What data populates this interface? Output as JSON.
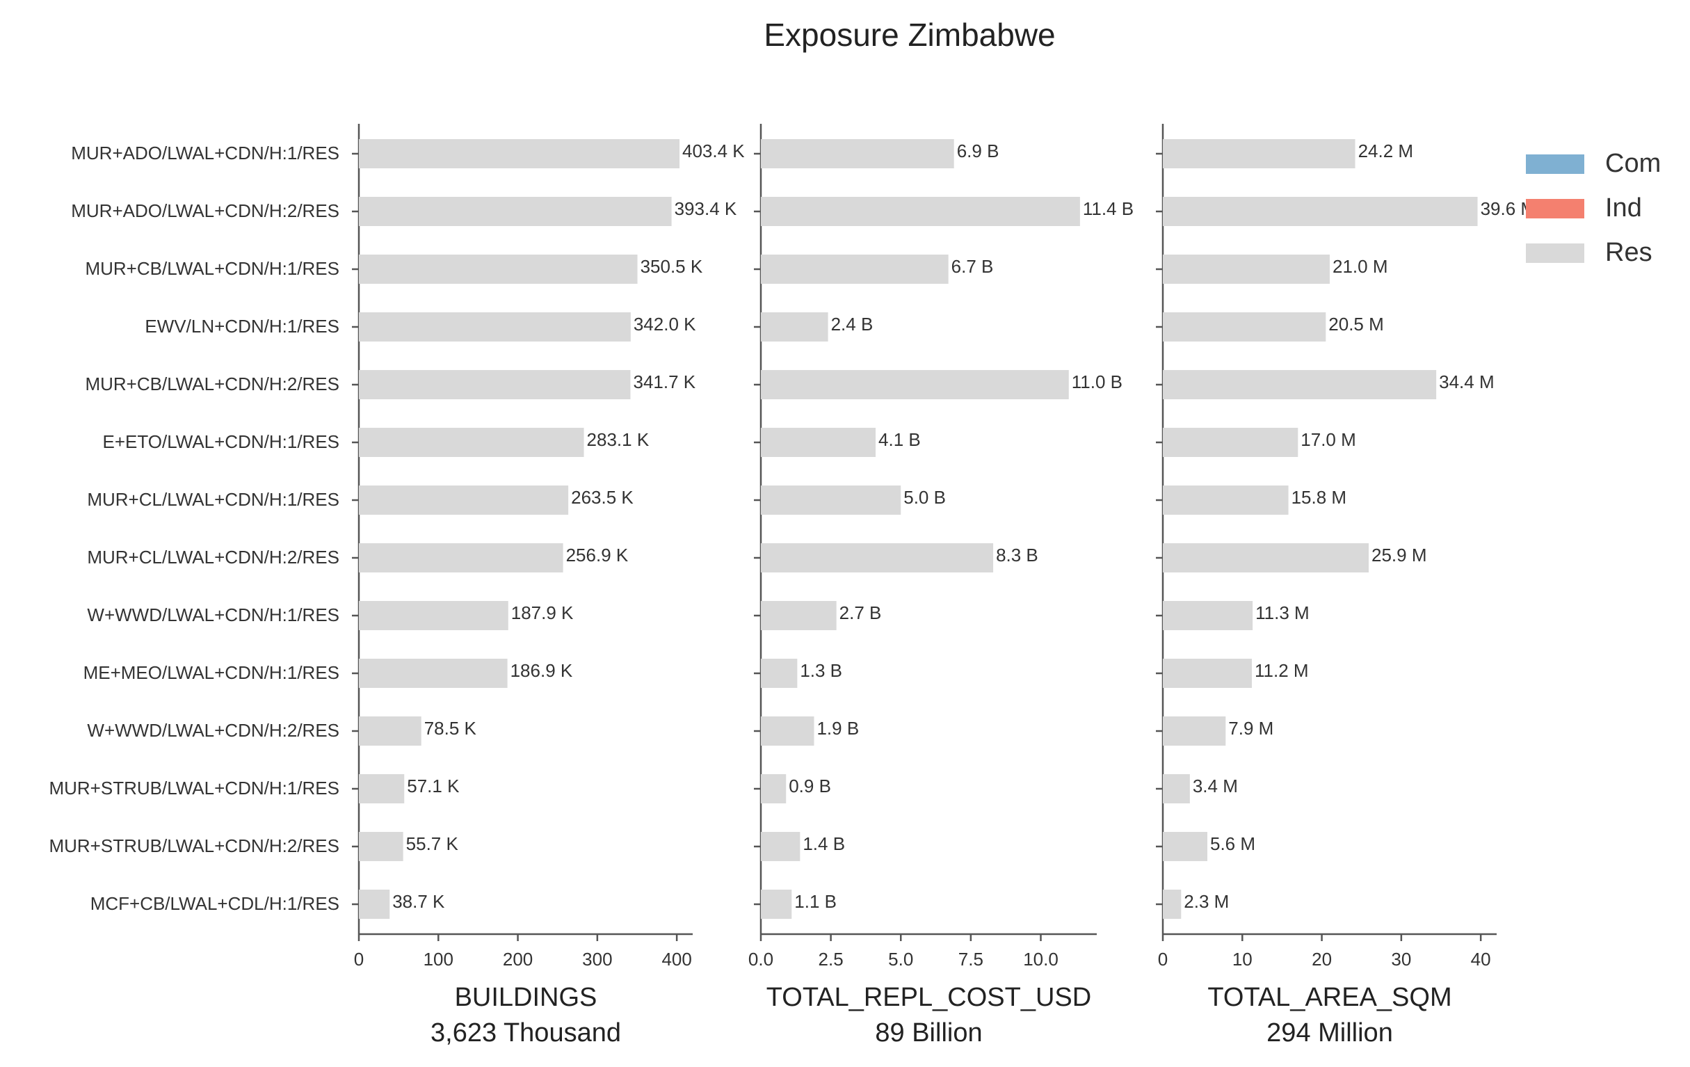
{
  "chart_data": {
    "type": "bar",
    "orientation": "horizontal",
    "stacked": true,
    "title": "Exposure Zimbabwe",
    "categories": [
      "MUR+ADO/LWAL+CDN/H:1/RES",
      "MUR+ADO/LWAL+CDN/H:2/RES",
      "MUR+CB/LWAL+CDN/H:1/RES",
      "EWV/LN+CDN/H:1/RES",
      "MUR+CB/LWAL+CDN/H:2/RES",
      "E+ETO/LWAL+CDN/H:1/RES",
      "MUR+CL/LWAL+CDN/H:1/RES",
      "MUR+CL/LWAL+CDN/H:2/RES",
      "W+WWD/LWAL+CDN/H:1/RES",
      "ME+MEO/LWAL+CDN/H:1/RES",
      "W+WWD/LWAL+CDN/H:2/RES",
      "MUR+STRUB/LWAL+CDN/H:1/RES",
      "MUR+STRUB/LWAL+CDN/H:2/RES",
      "MCF+CB/LWAL+CDL/H:1/RES"
    ],
    "legend": {
      "position": "top-right",
      "entries": [
        {
          "name": "Com",
          "color": "#7fb0d2"
        },
        {
          "name": "Ind",
          "color": "#f4806f"
        },
        {
          "name": "Res",
          "color": "#d9d9d9"
        }
      ]
    },
    "grid": false,
    "panels": [
      {
        "xlabel": "BUILDINGS",
        "subtitle": "3,623 Thousand",
        "xlim": [
          0,
          420
        ],
        "xticks": [
          0,
          100,
          200,
          300,
          400
        ],
        "xtick_labels": [
          "0",
          "100",
          "200",
          "300",
          "400"
        ],
        "series": [
          {
            "name": "Res",
            "values": [
              403.4,
              393.4,
              350.5,
              342.0,
              341.7,
              283.1,
              263.5,
              256.9,
              187.9,
              186.9,
              78.5,
              57.1,
              55.7,
              38.7
            ]
          }
        ],
        "data_labels": [
          "403.4 K",
          "393.4 K",
          "350.5 K",
          "342.0 K",
          "341.7 K",
          "283.1 K",
          "263.5 K",
          "256.9 K",
          "187.9 K",
          "186.9 K",
          "78.5 K",
          "57.1 K",
          "55.7 K",
          "38.7 K"
        ]
      },
      {
        "xlabel": "TOTAL_REPL_COST_USD",
        "subtitle": "89 Billion",
        "xlim": [
          0,
          12
        ],
        "xticks": [
          0,
          2.5,
          5,
          7.5,
          10
        ],
        "xtick_labels": [
          "0.0",
          "2.5",
          "5.0",
          "7.5",
          "10.0"
        ],
        "series": [
          {
            "name": "Res",
            "values": [
              6.9,
              11.4,
              6.7,
              2.4,
              11.0,
              4.1,
              5.0,
              8.3,
              2.7,
              1.3,
              1.9,
              0.9,
              1.4,
              1.1
            ]
          }
        ],
        "data_labels": [
          "6.9 B",
          "11.4 B",
          "6.7 B",
          "2.4 B",
          "11.0 B",
          "4.1 B",
          "5.0 B",
          "8.3 B",
          "2.7 B",
          "1.3 B",
          "1.9 B",
          "0.9 B",
          "1.4 B",
          "1.1 B"
        ]
      },
      {
        "xlabel": "TOTAL_AREA_SQM",
        "subtitle": "294 Million",
        "xlim": [
          0,
          42
        ],
        "xticks": [
          0,
          10,
          20,
          30,
          40
        ],
        "xtick_labels": [
          "0",
          "10",
          "20",
          "30",
          "40"
        ],
        "series": [
          {
            "name": "Res",
            "values": [
              24.2,
              39.6,
              21.0,
              20.5,
              34.4,
              17.0,
              15.8,
              25.9,
              11.3,
              11.2,
              7.9,
              3.4,
              5.6,
              2.3
            ]
          }
        ],
        "data_labels": [
          "24.2 M",
          "39.6 M",
          "21.0 M",
          "20.5 M",
          "34.4 M",
          "17.0 M",
          "15.8 M",
          "25.9 M",
          "11.3 M",
          "11.2 M",
          "7.9 M",
          "3.4 M",
          "5.6 M",
          "2.3 M"
        ]
      }
    ]
  }
}
